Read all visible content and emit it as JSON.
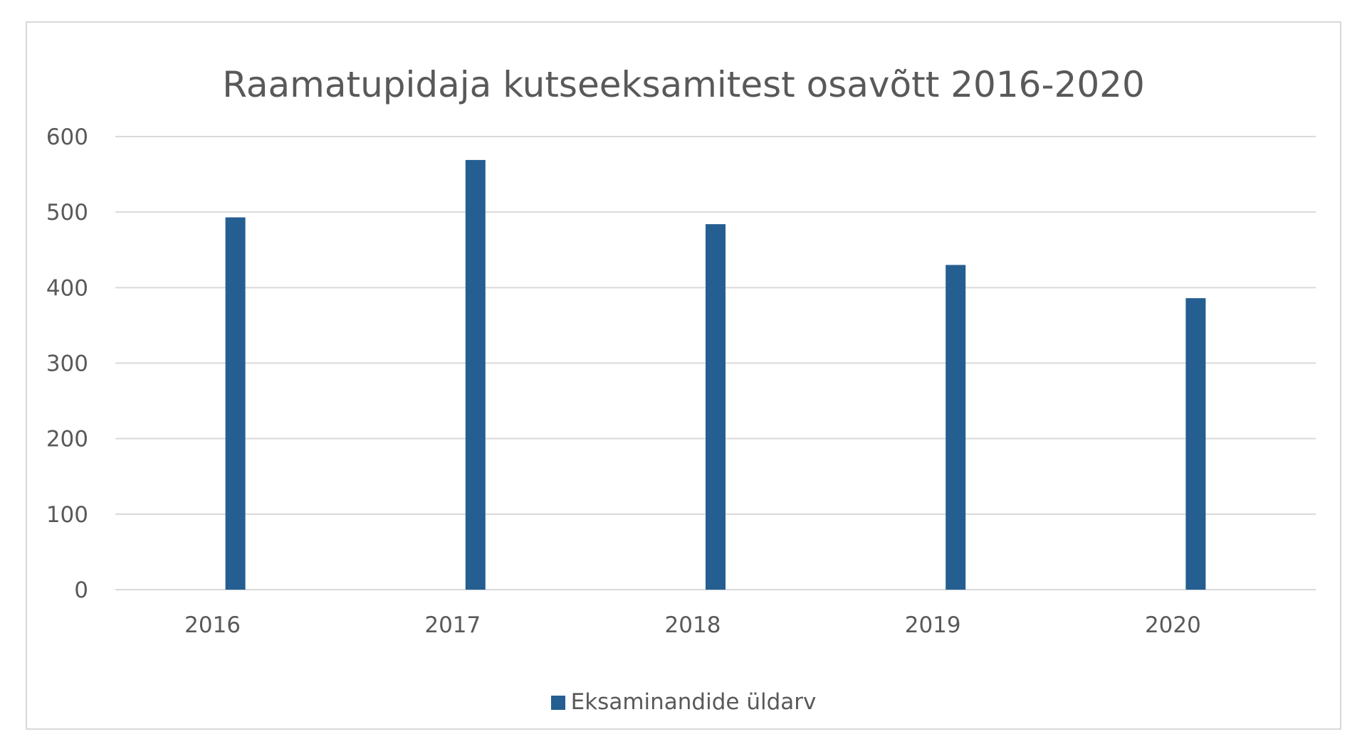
{
  "chart_data": {
    "type": "bar",
    "title": "Raamatupidaja kutseeksamitest osavõtt 2016-2020",
    "xlabel": "",
    "ylabel": "",
    "categories": [
      "2016",
      "2017",
      "2018",
      "2019",
      "2020"
    ],
    "series": [
      {
        "name": "Eksaminandide üldarv",
        "values": [
          493,
          569,
          484,
          430,
          386
        ],
        "color": "#255E91"
      }
    ],
    "ylim": [
      0,
      600
    ],
    "yticks": [
      "0",
      "100",
      "200",
      "300",
      "400",
      "500",
      "600"
    ],
    "grid": true,
    "legend_position": "bottom"
  },
  "colors": {
    "grid": "#d9d9d9",
    "text": "#595959"
  }
}
